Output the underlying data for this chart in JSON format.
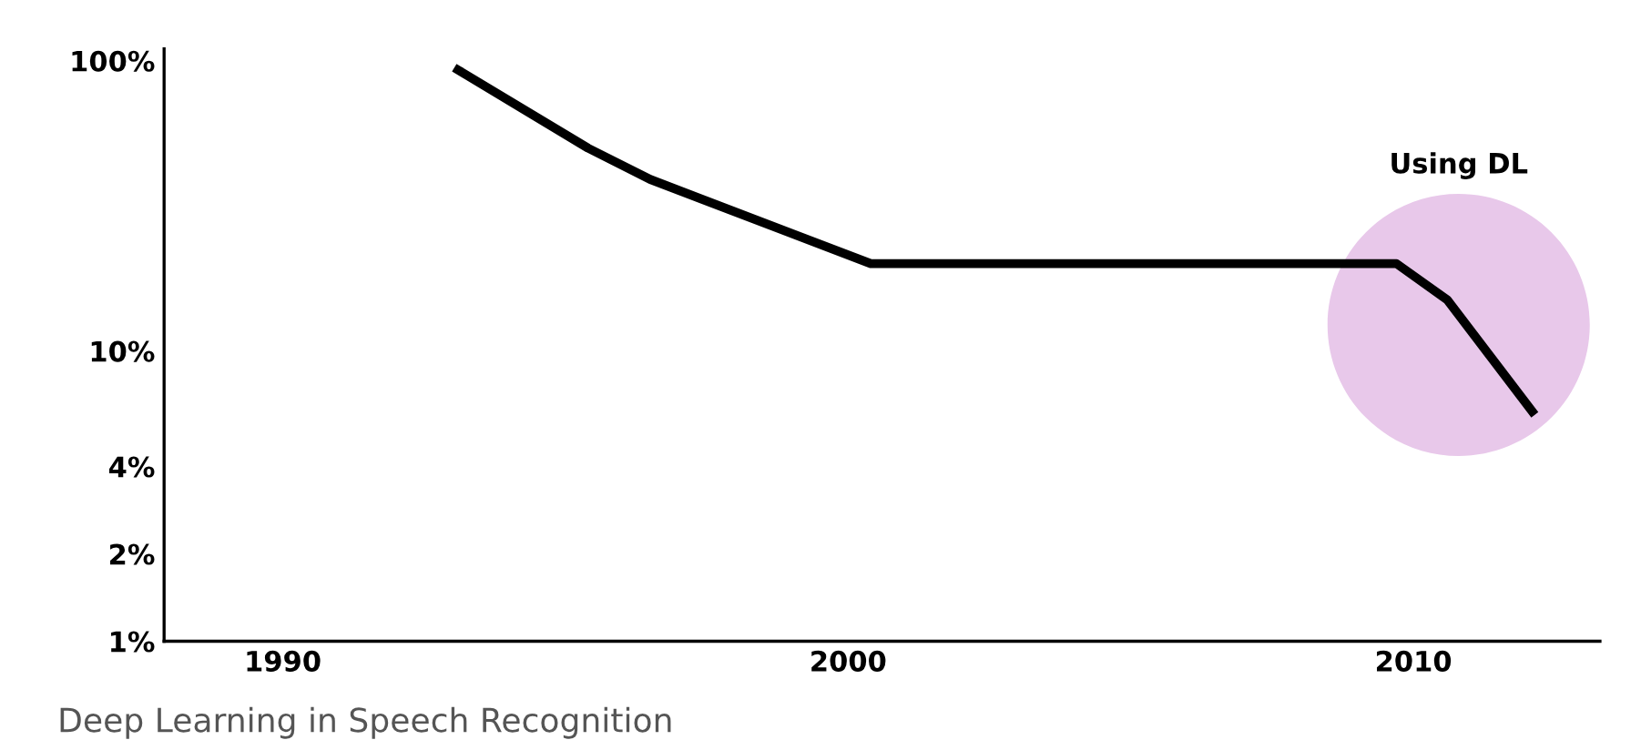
{
  "chart_data": {
    "type": "line",
    "x": [
      1993.1,
      1995.4,
      1996.5,
      2000.4,
      2009.7,
      2010.6,
      2012.1
    ],
    "series": [
      {
        "color": "#000000",
        "values": [
          93,
          50,
          39,
          20,
          20,
          15,
          6.2
        ]
      }
    ],
    "log": "y",
    "xlim": [
      1987.9,
      2013.3
    ],
    "ylim": [
      1,
      110
    ],
    "xticks": [
      1990,
      2000,
      2010
    ],
    "yticks": [
      {
        "value": 1,
        "label": "1%"
      },
      {
        "value": 2,
        "label": "2%"
      },
      {
        "value": 4,
        "label": "4%"
      },
      {
        "value": 10,
        "label": "10%"
      },
      {
        "value": 100,
        "label": "100%"
      }
    ],
    "grid": false,
    "annotations": [
      "Using DL",
      "Deep Learning in Speech Recognition"
    ]
  }
}
